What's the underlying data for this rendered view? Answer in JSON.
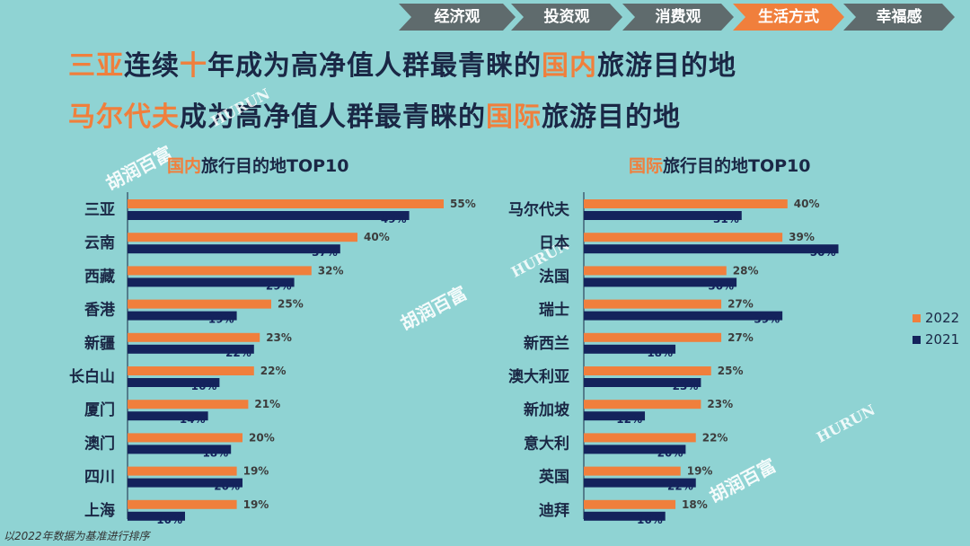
{
  "nav": {
    "items": [
      "经济观",
      "投资观",
      "消费观",
      "生活方式",
      "幸福感"
    ],
    "active_index": 3
  },
  "headline": {
    "line1": {
      "hl1": "三亚",
      "t1": "连续",
      "hl2": "十",
      "t2": "年成为高净值人群最青睐的",
      "hl3": "国内",
      "t3": "旅游目的地"
    },
    "line2": {
      "hl1": "马尔代夫",
      "t1": "成为高净值人群最青睐的",
      "hl2": "国际",
      "t2": "旅游目的地"
    }
  },
  "watermarks": {
    "cn": "胡润百富",
    "en": "HURUN"
  },
  "colors": {
    "background": "#8fd3d3",
    "series_2022": "#f07f3c",
    "series_2021": "#14235c",
    "highlight": "#f07f3c",
    "dark_text": "#1a2745"
  },
  "legend": [
    {
      "label": "2022",
      "color": "#f07f3c"
    },
    {
      "label": "2021",
      "color": "#14235c"
    }
  ],
  "footnote": "以2022年数据为基准进行排序",
  "chart_data": [
    {
      "type": "bar",
      "orientation": "horizontal",
      "title_hl": "国内",
      "title_rest": "旅行目的地TOP10",
      "categories": [
        "三亚",
        "云南",
        "西藏",
        "香港",
        "新疆",
        "长白山",
        "厦门",
        "澳门",
        "四川",
        "上海"
      ],
      "series": [
        {
          "name": "2022",
          "values": [
            55,
            40,
            32,
            25,
            23,
            22,
            21,
            20,
            19,
            19
          ]
        },
        {
          "name": "2021",
          "values": [
            49,
            37,
            29,
            19,
            22,
            16,
            14,
            18,
            20,
            10
          ]
        }
      ],
      "value_suffix": "%",
      "xlim": [
        0,
        60
      ]
    },
    {
      "type": "bar",
      "orientation": "horizontal",
      "title_hl": "国际",
      "title_rest": "旅行目的地TOP10",
      "categories": [
        "马尔代夫",
        "日本",
        "法国",
        "瑞士",
        "新西兰",
        "澳大利亚",
        "新加坡",
        "意大利",
        "英国",
        "迪拜"
      ],
      "series": [
        {
          "name": "2022",
          "values": [
            40,
            39,
            28,
            27,
            27,
            25,
            23,
            22,
            19,
            18
          ]
        },
        {
          "name": "2021",
          "values": [
            31,
            50,
            30,
            39,
            18,
            23,
            12,
            20,
            22,
            16
          ]
        }
      ],
      "value_suffix": "%",
      "xlim": [
        0,
        60
      ]
    }
  ]
}
